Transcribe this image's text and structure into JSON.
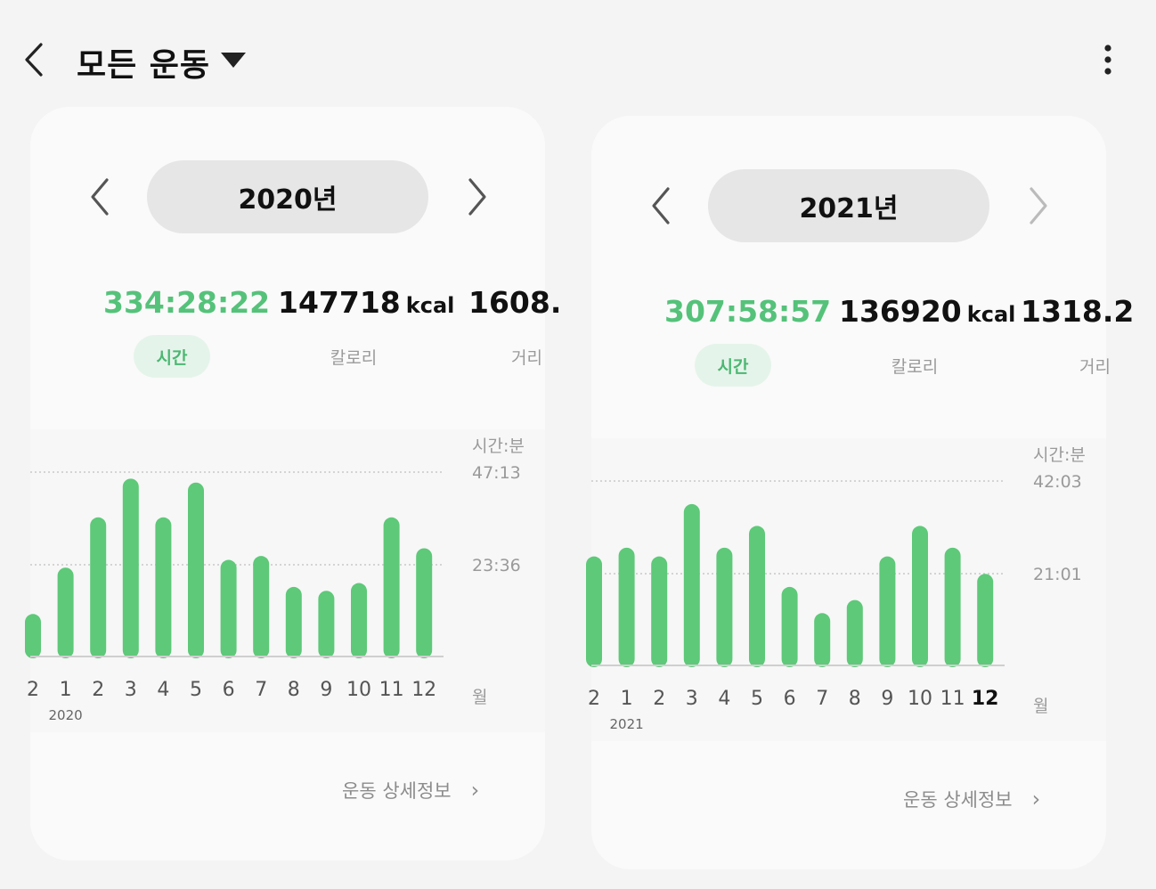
{
  "header": {
    "title": "모든 운동",
    "icons": {
      "back": "chevron-left-icon",
      "dropdown": "caret-down-icon",
      "more": "more-vertical-icon"
    }
  },
  "cards": [
    {
      "year_label": "2020년",
      "stats": {
        "time": {
          "value": "334:28:22",
          "label": "시간"
        },
        "calories": {
          "value": "147718",
          "unit": "kcal",
          "label": "칼로리"
        },
        "distance": {
          "value": "1608.",
          "label": "거리"
        }
      },
      "axis": {
        "unit_label": "시간:분",
        "top": "47:13",
        "mid": "23:36",
        "x_unit": "월"
      },
      "footer_link": "운동 상세정보",
      "chart_data": {
        "type": "bar",
        "categories": [
          "2",
          "1",
          "2",
          "3",
          "4",
          "5",
          "6",
          "7",
          "8",
          "9",
          "10",
          "11",
          "12"
        ],
        "year_tick": "2020",
        "values": [
          11,
          23,
          36,
          46,
          36,
          45,
          25,
          26,
          18,
          17,
          19,
          36,
          28
        ],
        "unit": "hours",
        "ylim": [
          0,
          53
        ],
        "gridlines": [
          "47:13",
          "23:36"
        ],
        "color": "#5ec979"
      }
    },
    {
      "year_label": "2021년",
      "stats": {
        "time": {
          "value": "307:58:57",
          "label": "시간"
        },
        "calories": {
          "value": "136920",
          "unit": "kcal",
          "label": "칼로리"
        },
        "distance": {
          "value": "1318.2",
          "label": "거리"
        }
      },
      "axis": {
        "unit_label": "시간:분",
        "top": "42:03",
        "mid": "21:01",
        "x_unit": "월"
      },
      "footer_link": "운동 상세정보",
      "chart_data": {
        "type": "bar",
        "categories": [
          "2",
          "1",
          "2",
          "3",
          "4",
          "5",
          "6",
          "7",
          "8",
          "9",
          "10",
          "11",
          "12"
        ],
        "year_tick": "2021",
        "values": [
          25,
          27,
          25,
          37,
          27,
          32,
          18,
          12,
          15,
          25,
          32,
          27,
          21
        ],
        "unit": "hours",
        "ylim": [
          0,
          47
        ],
        "gridlines": [
          "42:03",
          "21:01"
        ],
        "active_month_index": 12,
        "color": "#5ec979"
      }
    }
  ],
  "colors": {
    "accent": "#55c27a",
    "bar": "#5ec979",
    "pill": "#e6e6e6",
    "tag_active_bg": "#e5f4ea"
  }
}
